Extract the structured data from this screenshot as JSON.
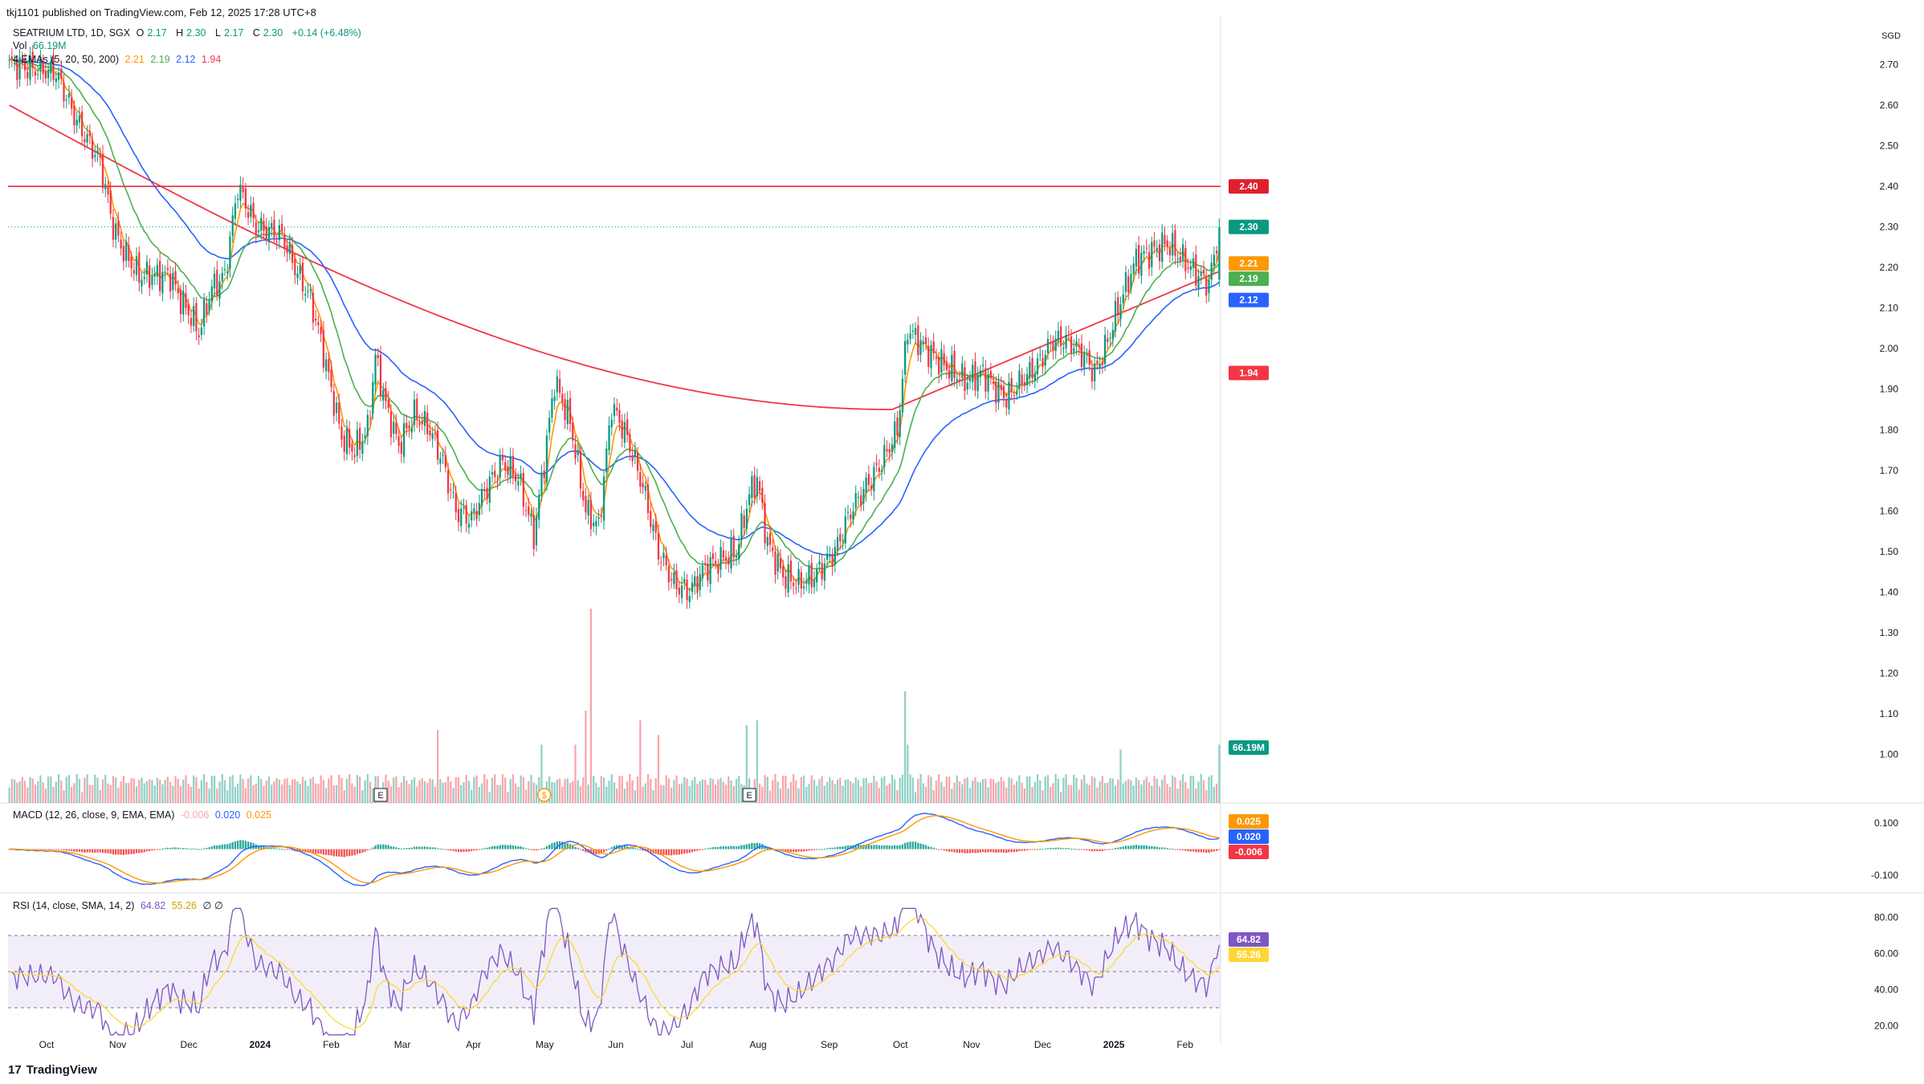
{
  "header": {
    "published": "tkj1101 published on TradingView.com, Feb 12, 2025 17:28 UTC+8"
  },
  "legend": {
    "symbol": "SEATRIUM LTD, 1D, SGX",
    "ohlc": {
      "o_label": "O",
      "o": "2.17",
      "h_label": "H",
      "h": "2.30",
      "l_label": "L",
      "l": "2.17",
      "c_label": "C",
      "c": "2.30",
      "change": "+0.14 (+6.48%)"
    },
    "vol_label": "Vol",
    "vol_value": "66.19M",
    "ema_label": "4 EMAs (5, 20, 50, 200)",
    "ema_values": [
      "2.21",
      "2.19",
      "2.12",
      "1.94"
    ],
    "macd_label": "MACD (12, 26, close, 9, EMA, EMA)",
    "macd_values": [
      "-0.006",
      "0.020",
      "0.025"
    ],
    "rsi_label": "RSI (14, close, SMA, 14, 2)",
    "rsi_values": [
      "64.82",
      "55.26"
    ],
    "rsi_extra": "∅ ∅"
  },
  "currency": "SGD",
  "footer": {
    "brand": "TradingView",
    "logo_glyph": "17"
  },
  "colors": {
    "up": "#089981",
    "down": "#f23645",
    "ema5": "#ff9800",
    "ema20": "#4caf50",
    "ema50": "#2962ff",
    "ema200": "#f23645",
    "hline": "#e01f2c",
    "rsi": "#7e57c2",
    "rsi_ma": "#fdd835"
  },
  "chart_data": {
    "type": "candlestick",
    "price_axis": {
      "min": 0.9,
      "max": 2.8,
      "ticks": [
        "2.70",
        "2.60",
        "2.50",
        "2.40",
        "2.30",
        "2.20",
        "2.10",
        "2.00",
        "1.90",
        "1.80",
        "1.70",
        "1.60",
        "1.50",
        "1.40",
        "1.30",
        "1.20",
        "1.10",
        "1.00"
      ]
    },
    "time_axis": [
      "Oct",
      "Nov",
      "Dec",
      "2024",
      "Feb",
      "Mar",
      "Apr",
      "May",
      "Jun",
      "Jul",
      "Aug",
      "Sep",
      "Oct",
      "Nov",
      "Dec",
      "2025",
      "Feb"
    ],
    "horizontal_line": 2.4,
    "last_price": 2.3,
    "price_labels": [
      {
        "text": "2.40",
        "value": 2.4,
        "color": "#e01f2c"
      },
      {
        "text": "2.30",
        "value": 2.3,
        "color": "#089981"
      },
      {
        "text": "2.21",
        "value": 2.21,
        "color": "#ff9800"
      },
      {
        "text": "2.19",
        "value": 2.19,
        "color": "#4caf50"
      },
      {
        "text": "2.12",
        "value": 2.12,
        "color": "#2962ff"
      },
      {
        "text": "1.94",
        "value": 1.94,
        "color": "#f23645"
      }
    ],
    "close_path": [
      [
        0,
        2.7
      ],
      [
        18,
        2.68
      ],
      [
        26,
        2.56
      ],
      [
        35,
        2.46
      ],
      [
        40,
        2.3
      ],
      [
        44,
        2.24
      ],
      [
        50,
        2.18
      ],
      [
        56,
        2.18
      ],
      [
        62,
        2.18
      ],
      [
        66,
        2.12
      ],
      [
        70,
        2.08
      ],
      [
        73,
        2.04
      ],
      [
        78,
        2.15
      ],
      [
        83,
        2.18
      ],
      [
        88,
        2.4
      ],
      [
        95,
        2.3
      ],
      [
        105,
        2.28
      ],
      [
        110,
        2.2
      ],
      [
        116,
        2.12
      ],
      [
        120,
        2.02
      ],
      [
        124,
        1.9
      ],
      [
        128,
        1.78
      ],
      [
        133,
        1.75
      ],
      [
        138,
        1.8
      ],
      [
        141,
        1.98
      ],
      [
        145,
        1.86
      ],
      [
        150,
        1.76
      ],
      [
        156,
        1.84
      ],
      [
        162,
        1.8
      ],
      [
        167,
        1.72
      ],
      [
        172,
        1.6
      ],
      [
        178,
        1.58
      ],
      [
        184,
        1.66
      ],
      [
        190,
        1.72
      ],
      [
        196,
        1.68
      ],
      [
        202,
        1.54
      ],
      [
        206,
        1.72
      ],
      [
        210,
        1.92
      ],
      [
        216,
        1.82
      ],
      [
        222,
        1.6
      ],
      [
        227,
        1.56
      ],
      [
        232,
        1.86
      ],
      [
        238,
        1.78
      ],
      [
        244,
        1.66
      ],
      [
        250,
        1.5
      ],
      [
        256,
        1.42
      ],
      [
        262,
        1.4
      ],
      [
        268,
        1.46
      ],
      [
        274,
        1.48
      ],
      [
        280,
        1.5
      ],
      [
        285,
        1.64
      ],
      [
        288,
        1.68
      ],
      [
        292,
        1.52
      ],
      [
        298,
        1.44
      ],
      [
        304,
        1.42
      ],
      [
        310,
        1.44
      ],
      [
        318,
        1.5
      ],
      [
        324,
        1.6
      ],
      [
        330,
        1.66
      ],
      [
        336,
        1.72
      ],
      [
        342,
        1.8
      ],
      [
        346,
        2.05
      ],
      [
        350,
        2.02
      ],
      [
        356,
        1.98
      ],
      [
        362,
        1.95
      ],
      [
        368,
        1.92
      ],
      [
        375,
        1.94
      ],
      [
        380,
        1.9
      ],
      [
        384,
        1.88
      ],
      [
        390,
        1.92
      ],
      [
        396,
        1.96
      ],
      [
        402,
        2.02
      ],
      [
        408,
        2.02
      ],
      [
        414,
        1.98
      ],
      [
        418,
        1.94
      ],
      [
        422,
        2.0
      ],
      [
        428,
        2.12
      ],
      [
        434,
        2.22
      ],
      [
        440,
        2.24
      ],
      [
        446,
        2.26
      ],
      [
        452,
        2.22
      ],
      [
        458,
        2.18
      ],
      [
        462,
        2.16
      ],
      [
        466,
        2.3
      ]
    ],
    "volume_axis_max": 200,
    "volume_last_label": "66.19M",
    "volume_spikes": [
      [
        224,
        200
      ],
      [
        222,
        95
      ],
      [
        218,
        60
      ],
      [
        243,
        85
      ],
      [
        250,
        70
      ],
      [
        284,
        80
      ],
      [
        288,
        85
      ],
      [
        345,
        115
      ],
      [
        346,
        60
      ],
      [
        165,
        75
      ],
      [
        205,
        60
      ],
      [
        428,
        55
      ],
      [
        466,
        60
      ]
    ],
    "macd": {
      "axis_ticks": [
        "0.100",
        "-0.100"
      ],
      "min": -0.13,
      "max": 0.13,
      "labels": [
        {
          "text": "0.025",
          "color": "#ff9800"
        },
        {
          "text": "0.020",
          "color": "#2962ff"
        },
        {
          "text": "-0.006",
          "color": "#f23645"
        }
      ]
    },
    "rsi": {
      "axis_ticks": [
        "80.00",
        "60.00",
        "40.00",
        "20.00"
      ],
      "upper_band": 70,
      "lower_band": 30,
      "labels": [
        {
          "text": "64.82",
          "color": "#7e57c2"
        },
        {
          "text": "55.26",
          "color": "#fdd835"
        }
      ]
    },
    "event_markers": [
      {
        "bar": 143,
        "text": "E"
      },
      {
        "bar": 206,
        "text": "$"
      },
      {
        "bar": 285,
        "text": "E"
      }
    ]
  }
}
